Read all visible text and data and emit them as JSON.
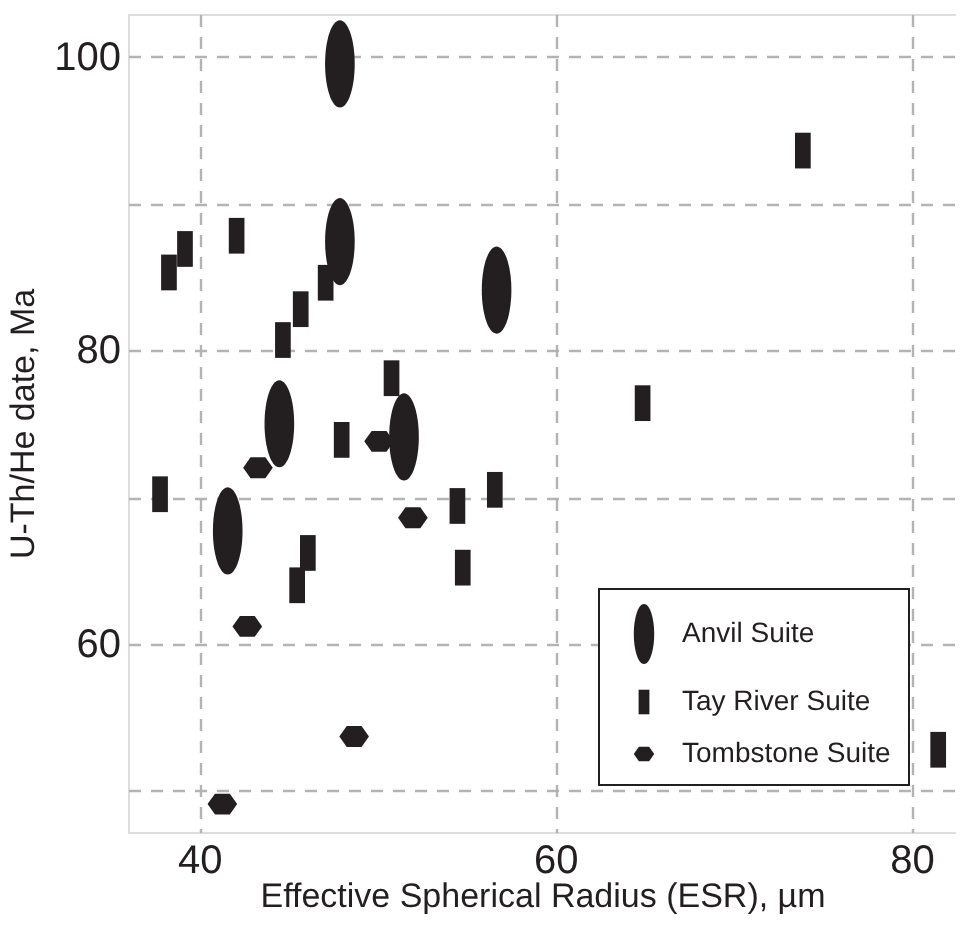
{
  "chart_data": {
    "type": "scatter",
    "xlabel": "Effective Spherical Radius (ESR), µm",
    "ylabel": "U-Th/He date, Ma",
    "xlim": [
      36,
      82.5
    ],
    "ylim": [
      47.2,
      102.9
    ],
    "xticks": [
      40,
      60,
      80
    ],
    "yticks": [
      {
        "value": 50,
        "label": null
      },
      60,
      {
        "value": 70,
        "label": null
      },
      80,
      {
        "value": 90,
        "label": null
      },
      100
    ],
    "grid": true,
    "legend": "bottom right",
    "series": [
      {
        "name": "Anvil Suite",
        "color": "#231f20",
        "x": [
          47.9,
          47.9,
          56.7,
          44.5,
          51.5,
          41.6
        ],
        "values": [
          99.5,
          87.4,
          84.1,
          75.0,
          74.1,
          67.7
        ]
      },
      {
        "name": "Tay River Suite",
        "color": "#231f20",
        "x": [
          73.9,
          38.3,
          39.2,
          42.1,
          47.1,
          45.7,
          44.7,
          50.8,
          64.9,
          48.0,
          56.6,
          37.8,
          54.5,
          46.1,
          45.5,
          54.8,
          81.5
        ],
        "values": [
          93.6,
          85.3,
          86.9,
          87.8,
          84.6,
          82.8,
          80.7,
          78.1,
          76.4,
          73.9,
          70.5,
          70.2,
          69.4,
          66.2,
          64.0,
          65.2,
          52.8
        ]
      },
      {
        "name": "Tombstone Suite",
        "color": "#231f20",
        "x": [
          43.3,
          50.1,
          52.0,
          42.7,
          48.7,
          41.3
        ],
        "values": [
          72.0,
          73.8,
          68.6,
          61.2,
          53.7,
          49.1
        ]
      }
    ]
  }
}
